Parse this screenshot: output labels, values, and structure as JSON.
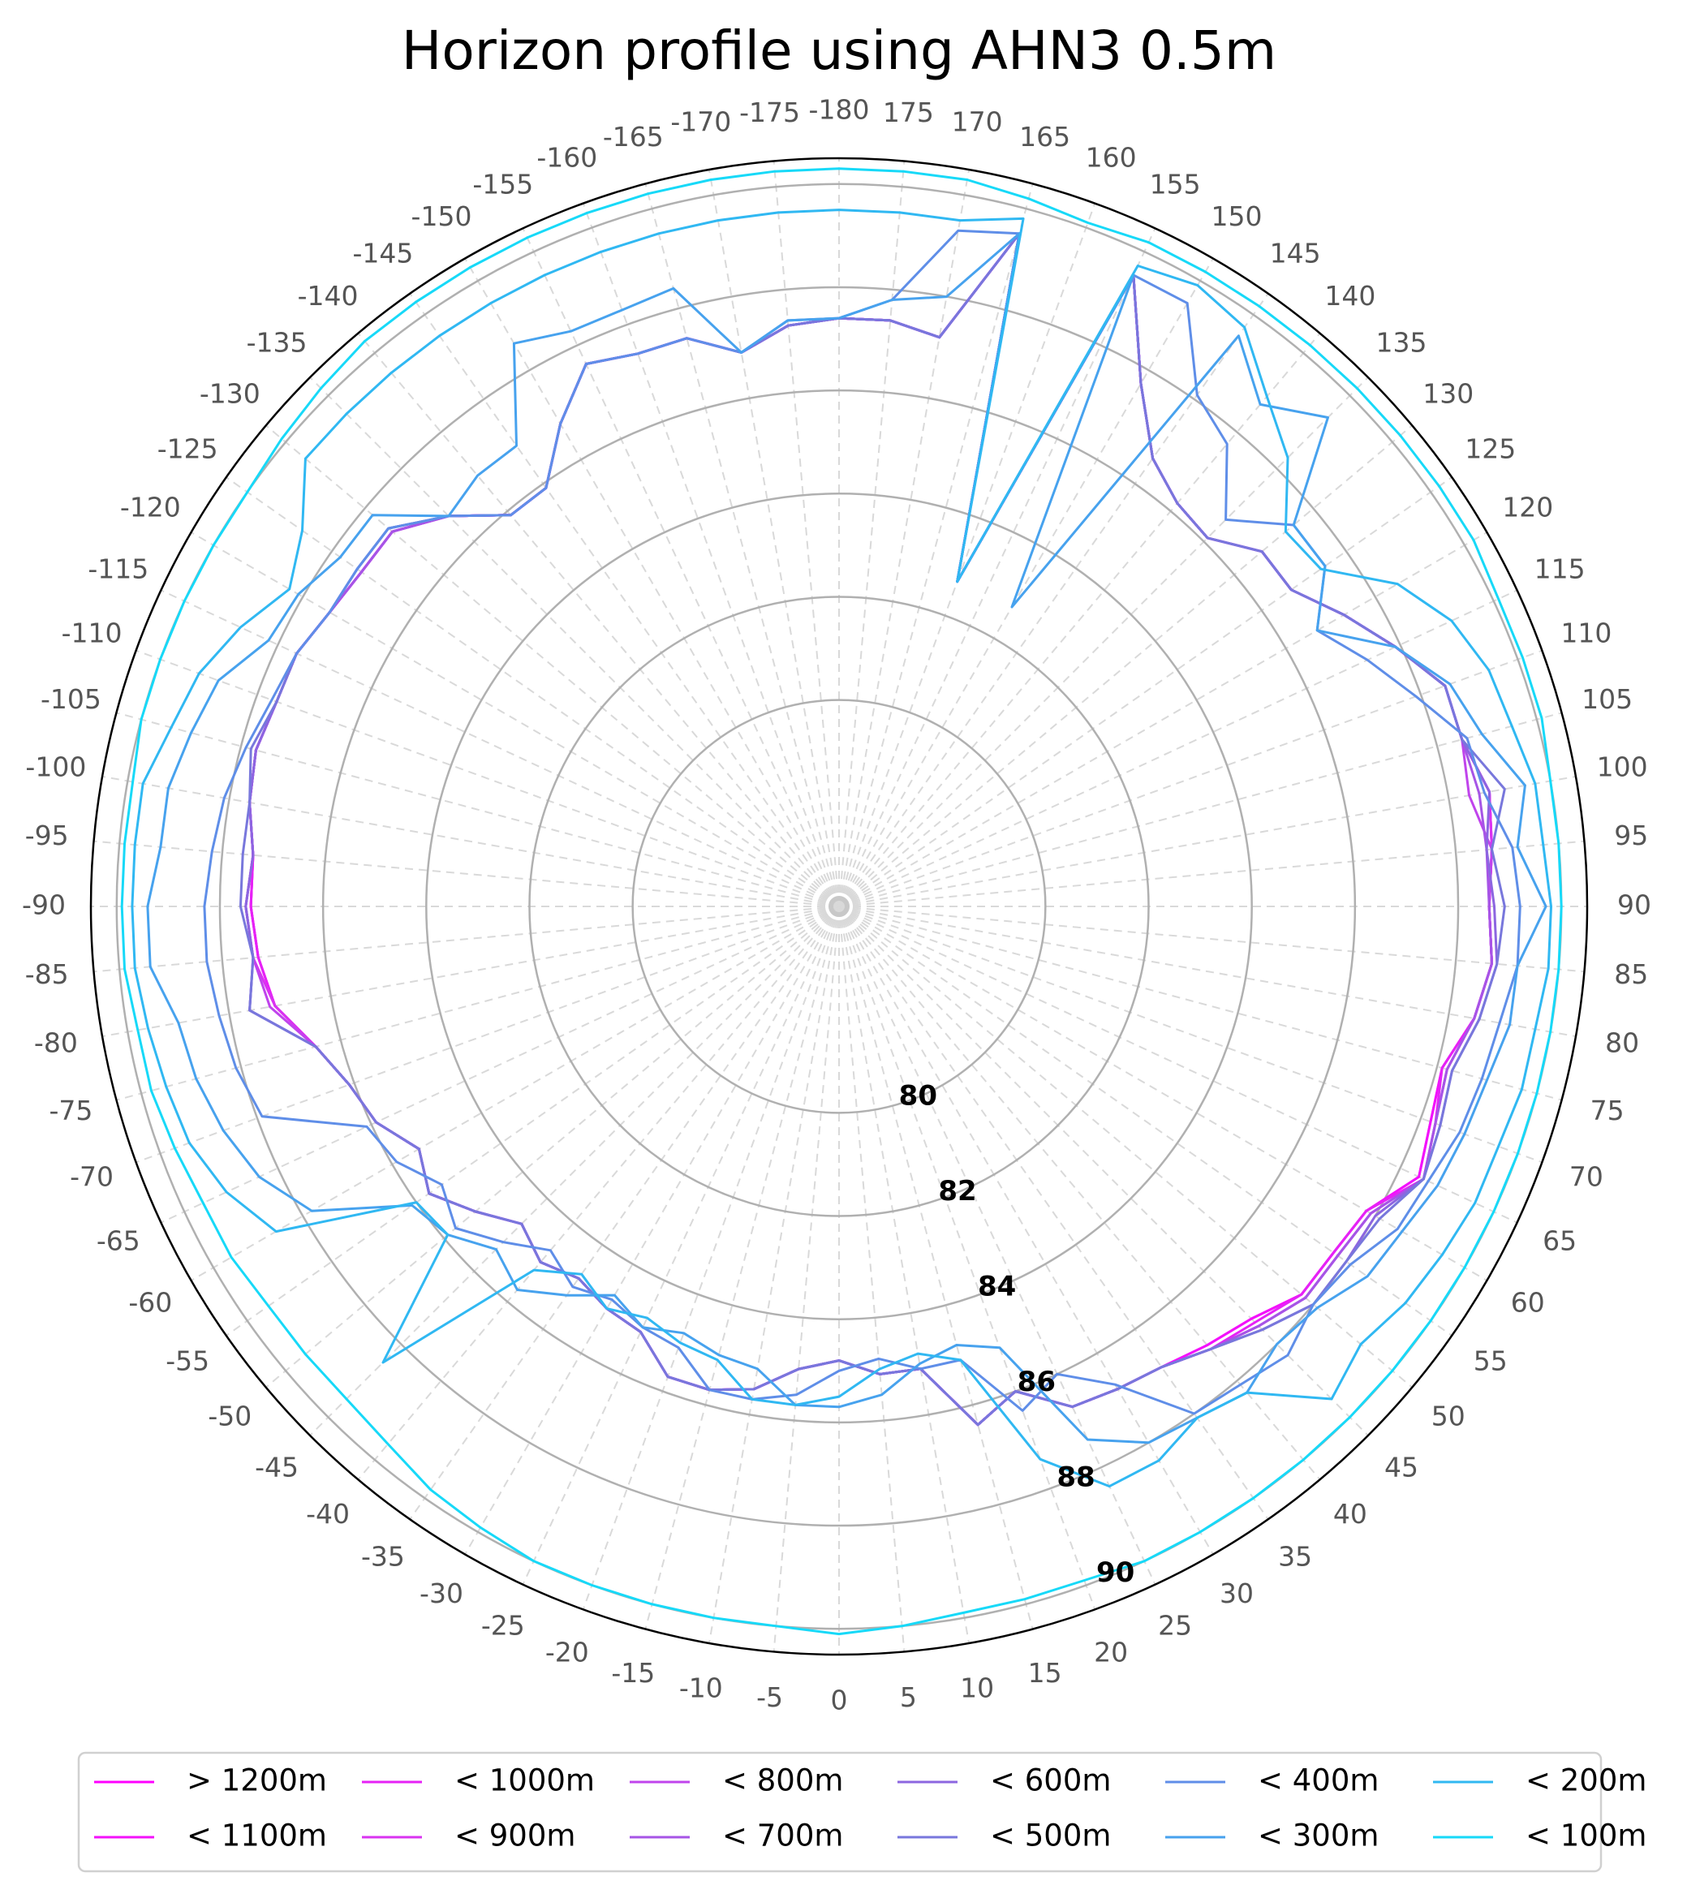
{
  "chart_data": {
    "type": "line",
    "projection": "polar",
    "title": "Horizon profile using AHN3 0.5m",
    "theta_direction": "azimuth increases counter-clockwise from the bottom (0 at bottom, -90 right, 90 left, -180/180 top)",
    "theta_ticks": [
      "-180",
      "-175",
      "-170",
      "-165",
      "-160",
      "-155",
      "-150",
      "-145",
      "-140",
      "-135",
      "-130",
      "-125",
      "-120",
      "-115",
      "-110",
      "-105",
      "-100",
      "-95",
      "-90",
      "-85",
      "-80",
      "-75",
      "-70",
      "-65",
      "-60",
      "-55",
      "-50",
      "-45",
      "-40",
      "-35",
      "-30",
      "-25",
      "-20",
      "-15",
      "-10",
      "-5",
      "0",
      "5",
      "10",
      "15",
      "20",
      "25",
      "30",
      "35",
      "40",
      "45",
      "50",
      "55",
      "60",
      "65",
      "70",
      "75",
      "80",
      "85",
      "90",
      "95",
      "100",
      "105",
      "110",
      "115",
      "120",
      "125",
      "130",
      "135",
      "140",
      "145",
      "150",
      "155",
      "160",
      "165",
      "170",
      "175"
    ],
    "r_ticks": [
      "80",
      "82",
      "84",
      "86",
      "88",
      "90"
    ],
    "r_tick_values": [
      80,
      82,
      84,
      86,
      88,
      90
    ],
    "rlim": [
      76,
      90.5
    ],
    "grid": true,
    "legend_position": "bottom",
    "azimuths": [
      -180,
      -175,
      -170,
      -165,
      -160,
      -155,
      -150,
      -145,
      -140,
      -135,
      -130,
      -125,
      -120,
      -115,
      -110,
      -105,
      -100,
      -95,
      -90,
      -85,
      -80,
      -75,
      -70,
      -65,
      -60,
      -55,
      -50,
      -45,
      -40,
      -35,
      -30,
      -25,
      -20,
      -15,
      -10,
      -5,
      0,
      5,
      10,
      15,
      20,
      25,
      30,
      35,
      40,
      45,
      50,
      55,
      60,
      65,
      70,
      75,
      80,
      85,
      90,
      95,
      100,
      105,
      110,
      115,
      120,
      125,
      130,
      135,
      140,
      145,
      150,
      155,
      160,
      165,
      170,
      175,
      180
    ],
    "series": [
      {
        "name": "> 1200m",
        "color": "#ff00ff",
        "values": [
          87.4,
          87.3,
          86.9,
          87.4,
          87.4,
          87.6,
          86.8,
          85.9,
          85.9,
          86.7,
          87.3,
          87.3,
          87.4,
          87.6,
          87.6,
          87.7,
          87.6,
          87.4,
          87.4,
          87.3,
          87.1,
          86.5,
          86.1,
          85.9,
          85.4,
          85.7,
          85.2,
          84.7,
          85.0,
          84.8,
          85.0,
          85.1,
          85.7,
          85.7,
          85.5,
          85.0,
          84.8,
          85.1,
          85.1,
          86.4,
          86.0,
          86.7,
          86.8,
          86.9,
          87.1,
          87.3,
          87.7,
          87.7,
          87.8,
          88.4,
          88.2,
          88.1,
          88.5,
          88.7,
          88.6,
          88.7,
          88.8,
          88.5,
          88.5,
          87.9,
          87.3,
          86.7,
          86.7,
          86.1,
          86.2,
          86.6,
          87.7,
          89.5,
          82.7,
          89.5,
          87.2,
          87.4,
          87.4
        ]
      },
      {
        "name": "< 1100m",
        "color": "#f311fb",
        "values": [
          87.4,
          87.3,
          86.9,
          87.4,
          87.4,
          87.6,
          86.8,
          85.9,
          85.9,
          86.7,
          87.3,
          87.3,
          87.4,
          87.6,
          87.6,
          87.7,
          87.6,
          87.4,
          87.4,
          87.3,
          87.1,
          86.5,
          86.1,
          85.9,
          85.4,
          85.7,
          85.2,
          84.7,
          85.0,
          84.8,
          85.0,
          85.1,
          85.7,
          85.7,
          85.5,
          85.0,
          84.8,
          85.1,
          85.1,
          86.4,
          86.0,
          86.7,
          86.8,
          86.9,
          87.1,
          87.3,
          87.7,
          87.7,
          87.8,
          88.4,
          88.2,
          88.1,
          88.5,
          88.7,
          88.6,
          88.7,
          88.8,
          88.5,
          88.5,
          87.9,
          87.3,
          86.7,
          86.7,
          86.1,
          86.2,
          86.6,
          87.7,
          89.5,
          82.7,
          89.5,
          87.2,
          87.4,
          87.4
        ]
      },
      {
        "name": "< 1000m",
        "color": "#e622f6",
        "values": [
          87.4,
          87.3,
          86.9,
          87.4,
          87.4,
          87.6,
          86.8,
          85.9,
          85.9,
          86.7,
          87.3,
          87.3,
          87.4,
          87.6,
          87.6,
          87.7,
          87.6,
          87.4,
          87.4,
          87.3,
          87.1,
          86.5,
          86.1,
          85.9,
          85.4,
          85.7,
          85.2,
          84.7,
          85.0,
          84.8,
          85.0,
          85.1,
          85.7,
          85.7,
          85.5,
          85.0,
          84.8,
          85.1,
          85.1,
          86.4,
          86.0,
          86.7,
          86.8,
          86.9,
          87.2,
          87.4,
          87.7,
          87.7,
          87.8,
          88.5,
          88.3,
          88.1,
          88.5,
          88.7,
          88.6,
          88.7,
          88.8,
          88.5,
          88.5,
          87.9,
          87.3,
          86.7,
          86.7,
          86.1,
          86.2,
          86.6,
          87.7,
          89.5,
          82.7,
          89.5,
          87.2,
          87.4,
          87.4
        ]
      },
      {
        "name": "< 900m",
        "color": "#d933f1",
        "values": [
          87.4,
          87.3,
          86.9,
          87.4,
          87.4,
          87.6,
          86.8,
          85.9,
          85.9,
          86.7,
          87.3,
          87.3,
          87.4,
          87.6,
          87.6,
          87.7,
          87.6,
          87.4,
          87.5,
          87.4,
          87.1,
          86.5,
          86.1,
          85.9,
          85.4,
          85.7,
          85.2,
          84.7,
          85.0,
          84.8,
          85.0,
          85.1,
          85.7,
          85.7,
          85.5,
          85.0,
          84.8,
          85.1,
          85.1,
          86.4,
          86.0,
          86.7,
          86.8,
          86.9,
          87.2,
          87.5,
          87.8,
          87.8,
          87.9,
          88.5,
          88.3,
          88.2,
          88.5,
          88.7,
          88.6,
          88.7,
          88.8,
          88.5,
          88.5,
          87.9,
          87.3,
          86.7,
          86.7,
          86.1,
          86.2,
          86.6,
          87.7,
          89.5,
          82.7,
          89.5,
          87.2,
          87.4,
          87.4
        ]
      },
      {
        "name": "< 800m",
        "color": "#c044ec",
        "values": [
          87.4,
          87.3,
          86.9,
          87.4,
          87.4,
          87.6,
          86.8,
          85.9,
          85.9,
          86.7,
          87.3,
          87.3,
          87.4,
          87.6,
          87.6,
          87.7,
          87.6,
          87.4,
          87.5,
          87.4,
          87.2,
          86.5,
          86.1,
          85.9,
          85.4,
          85.7,
          85.2,
          84.7,
          85.0,
          84.8,
          85.0,
          85.1,
          85.7,
          85.7,
          85.5,
          85.0,
          84.8,
          85.1,
          85.1,
          86.4,
          86.0,
          86.7,
          86.8,
          86.9,
          87.2,
          87.5,
          87.8,
          87.8,
          87.9,
          88.5,
          88.3,
          88.2,
          88.5,
          88.7,
          88.6,
          88.7,
          88.4,
          88.5,
          88.5,
          87.9,
          87.3,
          86.7,
          86.7,
          86.1,
          86.2,
          86.6,
          87.7,
          89.5,
          82.7,
          89.5,
          87.2,
          87.4,
          87.4
        ]
      },
      {
        "name": "< 700m",
        "color": "#a655e6",
        "values": [
          87.4,
          87.3,
          86.9,
          87.4,
          87.4,
          87.6,
          86.8,
          85.9,
          85.9,
          86.7,
          87.3,
          87.3,
          87.4,
          87.6,
          87.6,
          87.7,
          87.6,
          87.4,
          87.5,
          87.4,
          87.6,
          86.5,
          86.1,
          85.9,
          85.4,
          85.7,
          85.2,
          84.7,
          85.0,
          84.8,
          85.0,
          85.1,
          85.7,
          85.7,
          85.5,
          85.0,
          84.8,
          85.1,
          85.1,
          86.4,
          86.0,
          86.7,
          86.8,
          86.9,
          87.2,
          87.5,
          87.8,
          87.8,
          87.9,
          88.5,
          88.3,
          88.2,
          88.5,
          88.7,
          88.6,
          88.6,
          88.6,
          88.5,
          88.5,
          87.9,
          87.3,
          86.7,
          86.7,
          86.1,
          86.2,
          86.6,
          87.7,
          89.5,
          82.7,
          89.5,
          87.2,
          87.4,
          87.4
        ]
      },
      {
        "name": "< 600m",
        "color": "#8c66e0",
        "values": [
          87.4,
          87.3,
          86.9,
          87.4,
          87.4,
          87.6,
          86.8,
          85.9,
          85.9,
          86.7,
          87.4,
          87.4,
          87.4,
          87.6,
          87.6,
          87.7,
          87.6,
          87.4,
          87.5,
          87.4,
          87.6,
          86.5,
          86.1,
          85.9,
          85.4,
          85.7,
          85.2,
          84.7,
          85.0,
          84.8,
          85.0,
          85.1,
          85.7,
          85.7,
          85.5,
          85.0,
          84.8,
          85.1,
          85.1,
          86.4,
          86.0,
          86.7,
          86.8,
          86.9,
          87.2,
          87.6,
          88.0,
          88.0,
          88.0,
          88.5,
          88.4,
          88.3,
          88.6,
          88.8,
          88.7,
          88.6,
          88.8,
          88.5,
          88.5,
          87.9,
          87.3,
          86.7,
          86.7,
          86.1,
          86.2,
          86.6,
          87.7,
          89.5,
          82.7,
          89.5,
          87.2,
          87.4,
          87.4
        ]
      },
      {
        "name": "< 500m",
        "color": "#7877dc",
        "values": [
          87.4,
          87.3,
          86.9,
          87.4,
          87.4,
          87.6,
          86.8,
          85.9,
          85.9,
          86.7,
          87.4,
          87.4,
          87.4,
          87.6,
          87.6,
          87.8,
          87.6,
          87.6,
          87.6,
          87.4,
          87.6,
          86.5,
          86.1,
          85.9,
          85.4,
          85.7,
          85.2,
          84.7,
          85.0,
          84.8,
          85.0,
          85.1,
          85.7,
          85.7,
          85.5,
          85.0,
          84.8,
          85.1,
          85.1,
          86.4,
          86.0,
          86.7,
          86.8,
          86.9,
          87.2,
          87.6,
          88.0,
          88.0,
          88.1,
          88.5,
          88.4,
          88.3,
          88.6,
          88.8,
          88.9,
          88.7,
          89.1,
          88.5,
          88.5,
          87.9,
          87.3,
          86.7,
          86.7,
          86.1,
          86.2,
          86.6,
          87.7,
          89.5,
          82.7,
          89.5,
          87.2,
          87.4,
          87.4
        ]
      },
      {
        "name": "< 400m",
        "color": "#5f8ee8",
        "values": [
          87.4,
          87.4,
          86.9,
          87.4,
          87.4,
          87.6,
          86.8,
          85.9,
          85.9,
          86.7,
          87.4,
          87.4,
          87.4,
          87.6,
          87.7,
          87.9,
          88.1,
          88.2,
          88.3,
          88.3,
          88.2,
          88.1,
          87.9,
          86.1,
          85.9,
          85.4,
          85.7,
          85.2,
          84.7,
          85.0,
          84.8,
          85.0,
          85.1,
          85.7,
          85.7,
          85.5,
          85.0,
          84.8,
          85.1,
          85.1,
          86.4,
          86.0,
          86.7,
          88.0,
          88.1,
          88.3,
          88.0,
          88.1,
          88.5,
          88.6,
          88.8,
          88.9,
          89.0,
          89.2,
          89.2,
          89.1,
          88.7,
          88.6,
          87.9,
          87.3,
          86.7,
          87.5,
          87.5,
          86.6,
          87.7,
          88.1,
          89.5,
          89.5,
          82.7,
          89.5,
          89.3,
          87.8,
          87.4
        ]
      },
      {
        "name": "< 300m",
        "color": "#47a2ee",
        "values": [
          87.4,
          87.4,
          86.9,
          88.4,
          88.3,
          88.3,
          88.6,
          86.9,
          86.9,
          86.7,
          87.8,
          87.8,
          88.1,
          88.2,
          88.8,
          89.0,
          89.2,
          89.2,
          89.4,
          89.4,
          89.0,
          88.9,
          88.7,
          88.4,
          87.8,
          86.1,
          85.9,
          85.4,
          85.7,
          85.2,
          84.7,
          85.0,
          84.8,
          85.0,
          85.1,
          85.7,
          85.7,
          85.5,
          85.0,
          84.8,
          85.1,
          87.4,
          88.0,
          88.1,
          88.3,
          88.0,
          88.1,
          88.5,
          88.6,
          88.8,
          88.9,
          89.0,
          89.2,
          89.2,
          89.7,
          89.2,
          89.5,
          88.9,
          88.6,
          87.9,
          86.7,
          87.5,
          87.5,
          89.4,
          88.7,
          89.5,
          82.7,
          89.5,
          82.7,
          89.5,
          88.0,
          87.8,
          87.4
        ]
      },
      {
        "name": "< 200m",
        "color": "#30b8f2",
        "values": [
          89.5,
          89.5,
          89.5,
          89.5,
          89.5,
          89.5,
          89.5,
          89.5,
          89.5,
          89.5,
          89.5,
          88.7,
          88.3,
          88.8,
          89.2,
          89.4,
          89.7,
          89.7,
          89.7,
          89.7,
          89.6,
          89.5,
          89.4,
          89.1,
          88.6,
          86.0,
          85.9,
          88.5,
          85.2,
          84.7,
          85.0,
          84.8,
          85.0,
          85.1,
          85.7,
          85.7,
          85.5,
          85.0,
          84.8,
          85.1,
          87.4,
          88.4,
          88.4,
          88.1,
          88.3,
          89.5,
          89.2,
          89.4,
          89.5,
          89.6,
          89.6,
          89.7,
          89.7,
          89.8,
          89.8,
          89.7,
          89.7,
          89.5,
          89.4,
          89.1,
          88.5,
          87.4,
          87.3,
          88.3,
          88.9,
          89.7,
          89.9,
          89.7,
          82.7,
          89.8,
          89.5,
          89.5,
          89.5
        ]
      },
      {
        "name": "< 100m",
        "color": "#17d9f8",
        "values": [
          90.3,
          90.3,
          90.3,
          90.3,
          90.3,
          90.3,
          90.3,
          90.3,
          90.3,
          90.2,
          90.1,
          90.0,
          90.0,
          90.0,
          90.0,
          90.0,
          89.9,
          89.9,
          89.9,
          89.9,
          89.8,
          89.8,
          89.7,
          89.6,
          89.6,
          89.5,
          89.5,
          89.5,
          89.6,
          89.8,
          89.9,
          90.0,
          90.0,
          90.0,
          90.0,
          90.0,
          90.1,
          90.0,
          89.9,
          89.9,
          89.9,
          90.0,
          90.0,
          90.0,
          90.0,
          90.0,
          90.0,
          90.0,
          90.0,
          90.0,
          90.0,
          90.0,
          90.0,
          90.0,
          90.0,
          90.0,
          90.0,
          90.1,
          90.1,
          90.1,
          90.2,
          90.2,
          90.2,
          90.2,
          90.2,
          90.2,
          90.2,
          90.2,
          90.1,
          90.2,
          90.3,
          90.3,
          90.3
        ]
      }
    ]
  }
}
